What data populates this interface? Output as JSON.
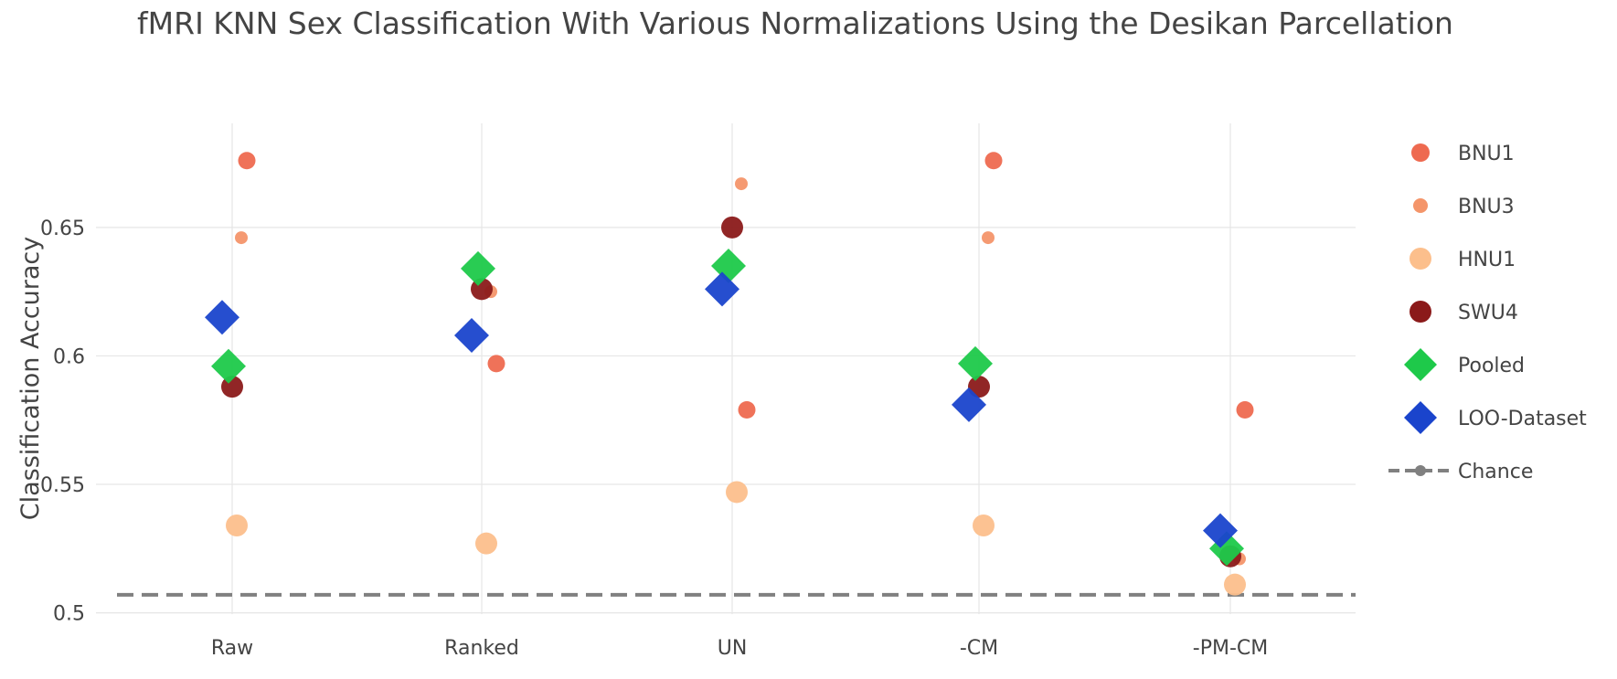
{
  "chart_data": {
    "type": "scatter",
    "title": "fMRI KNN Sex Classification With Various Normalizations Using the Desikan Parcellation",
    "ylabel": "Classification Accuracy",
    "xlabel": "",
    "categories": [
      "Raw",
      "Ranked",
      "UN",
      "-CM",
      "-PM-CM"
    ],
    "y_ticks": [
      0.5,
      0.55,
      0.6,
      0.65
    ],
    "ylim": [
      0.4995,
      0.6905
    ],
    "grid": true,
    "legend_position": "right",
    "chance_level": 0.507,
    "series": [
      {
        "name": "BNU1",
        "marker": "circle",
        "color": "#ee6a50",
        "size": "medium",
        "values": [
          0.676,
          0.597,
          0.579,
          0.676,
          0.579
        ]
      },
      {
        "name": "BNU3",
        "marker": "circle",
        "color": "#f4956a",
        "size": "small",
        "values": [
          0.646,
          0.625,
          0.667,
          0.646,
          0.521
        ]
      },
      {
        "name": "HNU1",
        "marker": "circle",
        "color": "#fcbf8c",
        "size": "large",
        "values": [
          0.534,
          0.527,
          0.547,
          0.534,
          0.511
        ]
      },
      {
        "name": "SWU4",
        "marker": "circle",
        "color": "#8b1a1a",
        "size": "large",
        "values": [
          0.588,
          0.626,
          0.65,
          0.588,
          0.522
        ]
      },
      {
        "name": "Pooled",
        "marker": "diamond",
        "color": "#1ec94a",
        "size": "large",
        "values": [
          0.596,
          0.634,
          0.635,
          0.597,
          0.525
        ]
      },
      {
        "name": "LOO-Dataset",
        "marker": "diamond",
        "color": "#1a44cc",
        "size": "large",
        "values": [
          0.615,
          0.608,
          0.626,
          0.581,
          0.532
        ]
      }
    ],
    "reference_line": {
      "name": "Chance",
      "style": "dashed",
      "color": "#808080"
    }
  }
}
